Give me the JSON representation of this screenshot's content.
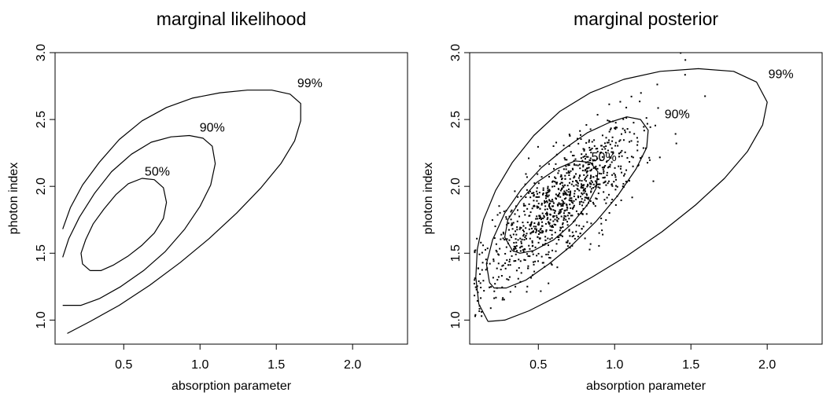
{
  "chart_data": [
    {
      "type": "contour",
      "title": "marginal likelihood",
      "xlabel": "absorption parameter",
      "ylabel": "photon index",
      "xlim": [
        0.05,
        2.36
      ],
      "ylim": [
        0.82,
        3.0
      ],
      "xticks": [
        "0.5",
        "1.0",
        "1.5",
        "2.0"
      ],
      "yticks": [
        "1.0",
        "1.5",
        "2.0",
        "2.5",
        "3.0"
      ],
      "grid": false,
      "contours": [
        {
          "level": "50%",
          "label_at": [
            0.72,
            2.08
          ],
          "points": [
            [
              0.28,
              1.37
            ],
            [
              0.23,
              1.42
            ],
            [
              0.22,
              1.5
            ],
            [
              0.25,
              1.6
            ],
            [
              0.3,
              1.72
            ],
            [
              0.37,
              1.83
            ],
            [
              0.45,
              1.94
            ],
            [
              0.53,
              2.02
            ],
            [
              0.62,
              2.06
            ],
            [
              0.7,
              2.05
            ],
            [
              0.76,
              1.99
            ],
            [
              0.78,
              1.88
            ],
            [
              0.76,
              1.76
            ],
            [
              0.7,
              1.65
            ],
            [
              0.62,
              1.56
            ],
            [
              0.53,
              1.48
            ],
            [
              0.43,
              1.41
            ],
            [
              0.35,
              1.37
            ],
            [
              0.28,
              1.37
            ]
          ]
        },
        {
          "level": "90%",
          "label_at": [
            1.08,
            2.41
          ],
          "points": [
            [
              0.1,
              1.47
            ],
            [
              0.14,
              1.61
            ],
            [
              0.21,
              1.77
            ],
            [
              0.31,
              1.95
            ],
            [
              0.42,
              2.11
            ],
            [
              0.55,
              2.24
            ],
            [
              0.68,
              2.33
            ],
            [
              0.81,
              2.37
            ],
            [
              0.93,
              2.38
            ],
            [
              1.02,
              2.36
            ],
            [
              1.08,
              2.3
            ],
            [
              1.1,
              2.17
            ],
            [
              1.07,
              2.01
            ],
            [
              1.0,
              1.85
            ],
            [
              0.9,
              1.68
            ],
            [
              0.77,
              1.51
            ],
            [
              0.63,
              1.37
            ],
            [
              0.48,
              1.25
            ],
            [
              0.34,
              1.16
            ],
            [
              0.22,
              1.11
            ],
            [
              0.1,
              1.11
            ]
          ]
        },
        {
          "level": "99%",
          "label_at": [
            1.72,
            2.74
          ],
          "points": [
            [
              0.1,
              1.68
            ],
            [
              0.15,
              1.84
            ],
            [
              0.23,
              2.01
            ],
            [
              0.34,
              2.18
            ],
            [
              0.47,
              2.35
            ],
            [
              0.62,
              2.49
            ],
            [
              0.78,
              2.59
            ],
            [
              0.95,
              2.66
            ],
            [
              1.13,
              2.7
            ],
            [
              1.31,
              2.72
            ],
            [
              1.47,
              2.72
            ],
            [
              1.59,
              2.69
            ],
            [
              1.66,
              2.62
            ],
            [
              1.66,
              2.49
            ],
            [
              1.62,
              2.34
            ],
            [
              1.53,
              2.17
            ],
            [
              1.4,
              1.99
            ],
            [
              1.24,
              1.8
            ],
            [
              1.06,
              1.61
            ],
            [
              0.87,
              1.43
            ],
            [
              0.67,
              1.26
            ],
            [
              0.47,
              1.11
            ],
            [
              0.28,
              0.99
            ],
            [
              0.13,
              0.9
            ]
          ]
        }
      ]
    },
    {
      "type": "contour",
      "title": "marginal posterior",
      "xlabel": "absorption parameter",
      "ylabel": "photon index",
      "xlim": [
        0.05,
        2.36
      ],
      "ylim": [
        0.82,
        3.0
      ],
      "xticks": [
        "0.5",
        "1.0",
        "1.5",
        "2.0"
      ],
      "yticks": [
        "1.0",
        "1.5",
        "2.0",
        "2.5",
        "3.0"
      ],
      "grid": false,
      "scatter_points": 1000,
      "scatter_mean": [
        0.65,
        1.88
      ],
      "contours": [
        {
          "level": "50%",
          "label_at": [
            0.93,
            2.19
          ],
          "points": [
            [
              0.33,
              1.52
            ],
            [
              0.28,
              1.62
            ],
            [
              0.3,
              1.75
            ],
            [
              0.38,
              1.89
            ],
            [
              0.49,
              2.03
            ],
            [
              0.62,
              2.13
            ],
            [
              0.74,
              2.19
            ],
            [
              0.84,
              2.18
            ],
            [
              0.89,
              2.11
            ],
            [
              0.88,
              1.99
            ],
            [
              0.82,
              1.86
            ],
            [
              0.72,
              1.72
            ],
            [
              0.6,
              1.6
            ],
            [
              0.47,
              1.52
            ],
            [
              0.38,
              1.5
            ],
            [
              0.33,
              1.52
            ]
          ]
        },
        {
          "level": "90%",
          "label_at": [
            1.41,
            2.51
          ],
          "points": [
            [
              0.18,
              1.28
            ],
            [
              0.16,
              1.42
            ],
            [
              0.2,
              1.6
            ],
            [
              0.28,
              1.8
            ],
            [
              0.39,
              1.98
            ],
            [
              0.52,
              2.14
            ],
            [
              0.67,
              2.28
            ],
            [
              0.82,
              2.4
            ],
            [
              0.97,
              2.48
            ],
            [
              1.08,
              2.52
            ],
            [
              1.17,
              2.5
            ],
            [
              1.22,
              2.42
            ],
            [
              1.21,
              2.29
            ],
            [
              1.14,
              2.13
            ],
            [
              1.02,
              1.93
            ],
            [
              0.88,
              1.74
            ],
            [
              0.72,
              1.56
            ],
            [
              0.57,
              1.42
            ],
            [
              0.42,
              1.3
            ],
            [
              0.29,
              1.24
            ],
            [
              0.21,
              1.24
            ],
            [
              0.18,
              1.28
            ]
          ]
        },
        {
          "level": "99%",
          "label_at": [
            2.09,
            2.81
          ],
          "points": [
            [
              0.17,
              0.99
            ],
            [
              0.11,
              1.12
            ],
            [
              0.09,
              1.32
            ],
            [
              0.1,
              1.53
            ],
            [
              0.14,
              1.75
            ],
            [
              0.22,
              1.97
            ],
            [
              0.33,
              2.18
            ],
            [
              0.47,
              2.38
            ],
            [
              0.64,
              2.56
            ],
            [
              0.84,
              2.7
            ],
            [
              1.06,
              2.8
            ],
            [
              1.3,
              2.86
            ],
            [
              1.55,
              2.88
            ],
            [
              1.78,
              2.86
            ],
            [
              1.93,
              2.78
            ],
            [
              2.0,
              2.63
            ],
            [
              1.97,
              2.46
            ],
            [
              1.87,
              2.26
            ],
            [
              1.72,
              2.06
            ],
            [
              1.53,
              1.86
            ],
            [
              1.31,
              1.66
            ],
            [
              1.08,
              1.48
            ],
            [
              0.85,
              1.32
            ],
            [
              0.63,
              1.18
            ],
            [
              0.44,
              1.07
            ],
            [
              0.28,
              1.0
            ],
            [
              0.17,
              0.99
            ]
          ]
        }
      ]
    }
  ]
}
